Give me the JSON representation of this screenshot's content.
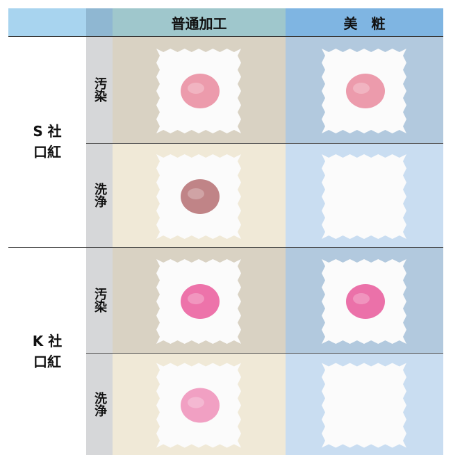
{
  "header": {
    "columns": [
      "普通加工",
      "美　粧"
    ]
  },
  "groups": [
    {
      "brand": "S 社",
      "product": "口紅",
      "rows": [
        "汚染",
        "洗浄"
      ]
    },
    {
      "brand": "K 社",
      "product": "口紅",
      "rows": [
        "汚染",
        "洗浄"
      ]
    }
  ]
}
